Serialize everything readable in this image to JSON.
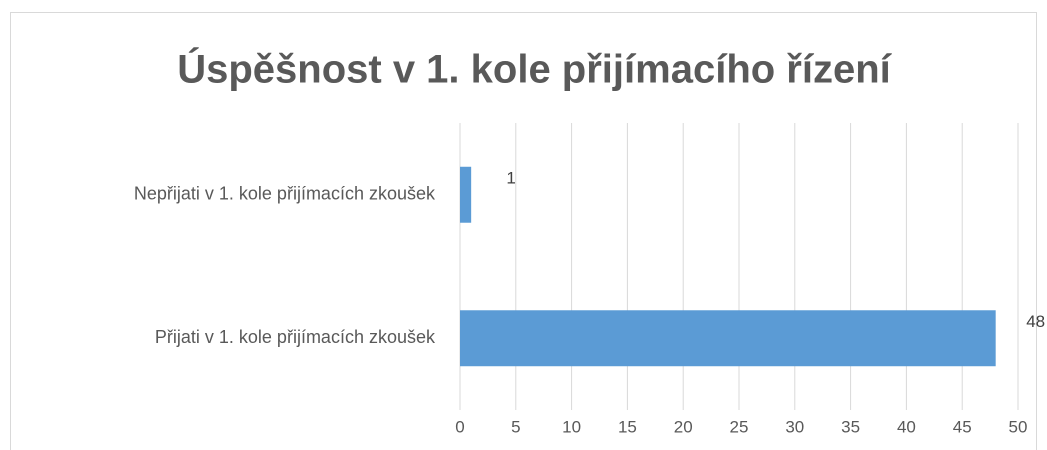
{
  "chart_data": {
    "type": "barh",
    "title": "Úspěšnost v 1. kole přijímacího řízení",
    "categories": [
      "Nepřijati v 1. kole přijímacích zkoušek",
      "Přijati v 1. kole přijímacích zkoušek"
    ],
    "values": [
      1,
      48
    ],
    "color": "#5b9bd5",
    "xlim": [
      0,
      50
    ],
    "xticks": [
      0,
      5,
      10,
      15,
      20,
      25,
      30,
      35,
      40,
      45,
      50
    ],
    "grid": true
  }
}
